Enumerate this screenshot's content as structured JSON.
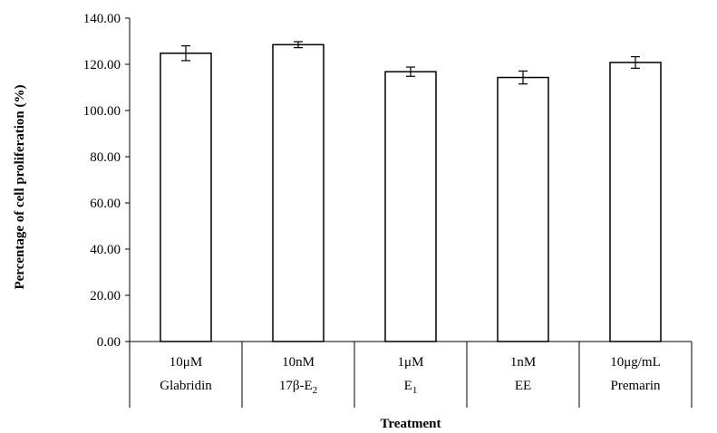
{
  "chart_data": {
    "type": "bar",
    "xlabel": "Treatment",
    "ylabel": "Percentage of cell proliferation (%)",
    "ylim": [
      0,
      140
    ],
    "yticks": [
      "0.00",
      "20.00",
      "40.00",
      "60.00",
      "80.00",
      "100.00",
      "120.00",
      "140.00"
    ],
    "categories": [
      {
        "line1": "10μM",
        "line2": "Glabridin"
      },
      {
        "line1": "10nM",
        "line2": "17β-E",
        "sub": "2"
      },
      {
        "line1": "1μM",
        "line2": "E",
        "sub": "1"
      },
      {
        "line1": "1nM",
        "line2": "EE"
      },
      {
        "line1": "10μg/mL",
        "line2": "Premarin"
      }
    ],
    "values": [
      124.8,
      128.5,
      116.8,
      114.3,
      120.8
    ],
    "errors": [
      3.2,
      1.3,
      2.0,
      2.8,
      2.5
    ],
    "grid": false,
    "legend": "none",
    "colors": {
      "bar_fill": "#ffffff",
      "bar_stroke": "#000000",
      "axis": "#000000"
    }
  }
}
